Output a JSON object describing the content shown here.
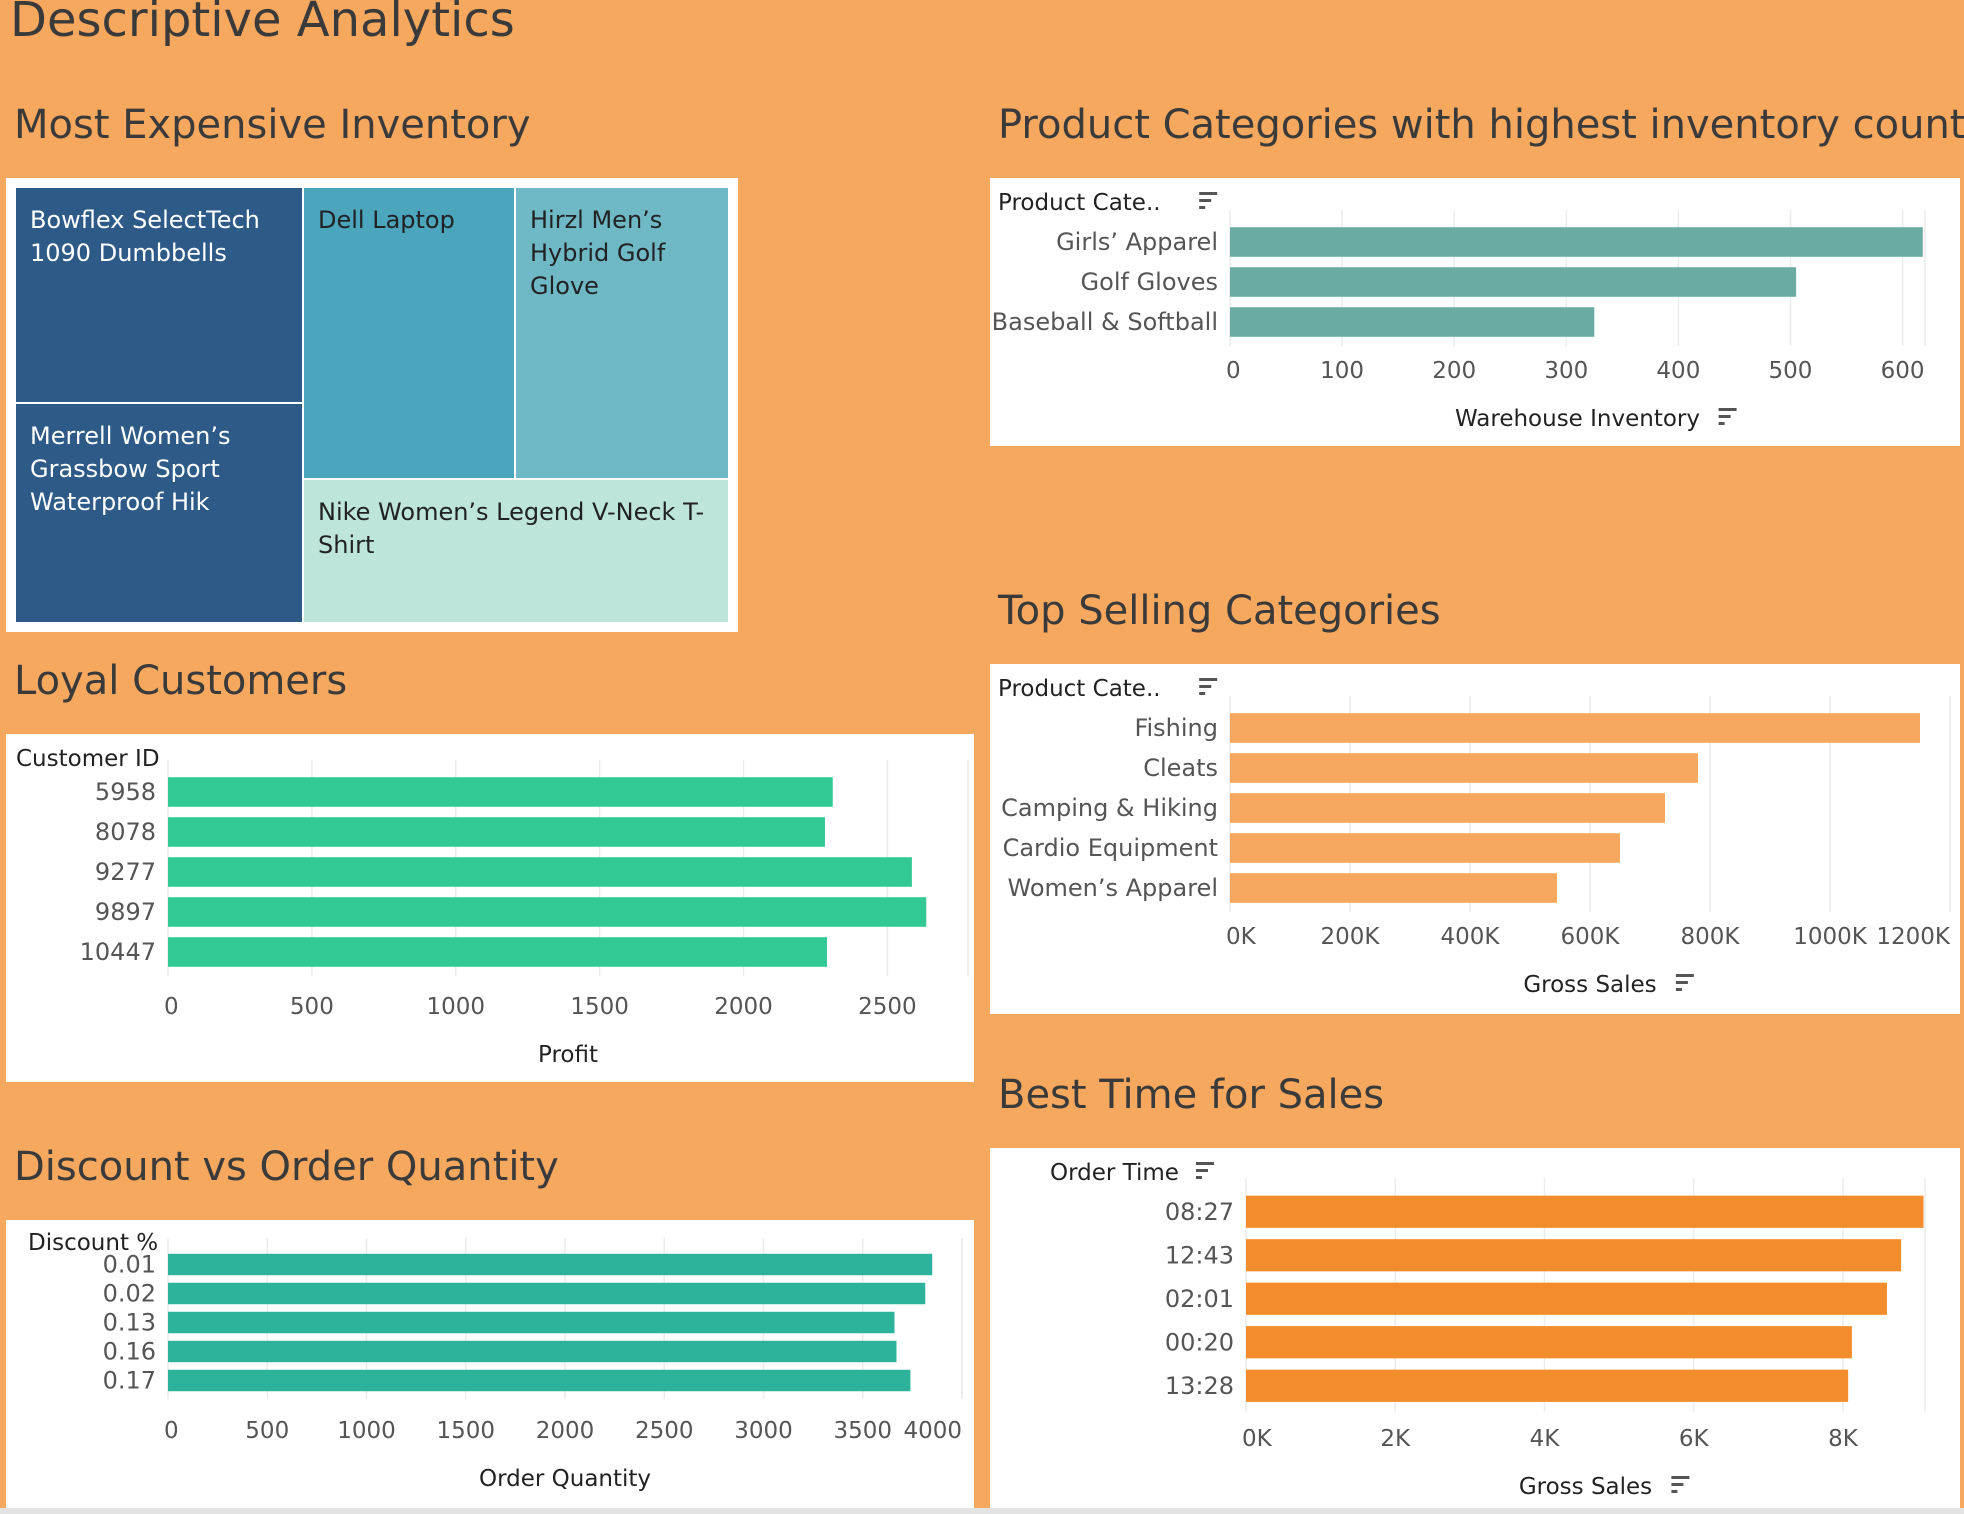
{
  "page": {
    "title": "Descriptive Analytics"
  },
  "sections": {
    "treemap_title": "Most Expensive Inventory",
    "loyal_title": "Loyal Customers",
    "discount_title": "Discount vs Order Quantity",
    "inventory_title": "Product Categories with highest inventory counts",
    "topselling_title": "Top Selling Categories",
    "besttime_title": "Best Time for Sales"
  },
  "colors": {
    "background": "#f6a85f",
    "treemap": [
      "#2d5a87",
      "#4aa5bd",
      "#6fb8c6",
      "#bde5da"
    ],
    "loyal": "#33c994",
    "discount": "#2db39b",
    "inventory": "#6aaca4",
    "topselling": "#f6a85f",
    "besttime": "#f28c2c"
  },
  "chart_data": [
    {
      "id": "treemap",
      "type": "treemap",
      "title": "Most Expensive Inventory",
      "items": [
        {
          "label": "Bowflex SelectTech 1090 Dumbbells",
          "color": "#2d5a87"
        },
        {
          "label": "Merrell Women’s Grassbow Sport Waterproof Hik",
          "color": "#2d5a87"
        },
        {
          "label": "Dell Laptop",
          "color": "#4aa5bd"
        },
        {
          "label": "Hirzl Men’s Hybrid Golf Glove",
          "color": "#6fb8c6"
        },
        {
          "label": "Nike Women’s Legend V-Neck T-Shirt",
          "color": "#bde5da"
        }
      ]
    },
    {
      "id": "inventory",
      "type": "bar",
      "title": "Product Categories with highest inventory counts",
      "orientation": "horizontal",
      "ylabel": "Product Cate..",
      "xlabel": "Warehouse Inventory",
      "categories": [
        "Girls’ Apparel",
        "Golf Gloves",
        "Baseball & Softball"
      ],
      "values": [
        618,
        505,
        325
      ],
      "xlim": [
        0,
        620
      ],
      "ticks": [
        0,
        100,
        200,
        300,
        400,
        500,
        600
      ],
      "tick_labels": [
        "0",
        "100",
        "200",
        "300",
        "400",
        "500",
        "600"
      ],
      "grid": true
    },
    {
      "id": "loyal",
      "type": "bar",
      "title": "Loyal Customers",
      "orientation": "horizontal",
      "ylabel": "Customer ID",
      "xlabel": "Profit",
      "categories": [
        "5958",
        "8078",
        "9277",
        "9897",
        "10447"
      ],
      "values": [
        2310,
        2283,
        2585,
        2635,
        2290
      ],
      "xlim": [
        0,
        2780
      ],
      "ticks": [
        0,
        500,
        1000,
        1500,
        2000,
        2500
      ],
      "tick_labels": [
        "0",
        "500",
        "1000",
        "1500",
        "2000",
        "2500"
      ],
      "grid": true
    },
    {
      "id": "topselling",
      "type": "bar",
      "title": "Top Selling Categories",
      "orientation": "horizontal",
      "ylabel": "Product Cate..",
      "xlabel": "Gross Sales",
      "categories": [
        "Fishing",
        "Cleats",
        "Camping & Hiking",
        "Cardio Equipment",
        "Women’s Apparel"
      ],
      "values": [
        1150000,
        780000,
        725000,
        650000,
        545000
      ],
      "xlim": [
        0,
        1200000
      ],
      "ticks": [
        0,
        200000,
        400000,
        600000,
        800000,
        1000000,
        1200000
      ],
      "tick_labels": [
        "0K",
        "200K",
        "400K",
        "600K",
        "800K",
        "1000K",
        "1200K"
      ],
      "grid": true
    },
    {
      "id": "discount",
      "type": "bar",
      "title": "Discount vs Order Quantity",
      "orientation": "horizontal",
      "ylabel": "Discount %",
      "xlabel": "Order Quantity",
      "categories": [
        "0.01",
        "0.02",
        "0.13",
        "0.16",
        "0.17"
      ],
      "values": [
        3850,
        3815,
        3660,
        3670,
        3740
      ],
      "xlim": [
        0,
        4000
      ],
      "ticks": [
        0,
        500,
        1000,
        1500,
        2000,
        2500,
        3000,
        3500,
        4000
      ],
      "tick_labels": [
        "0",
        "500",
        "1000",
        "1500",
        "2000",
        "2500",
        "3000",
        "3500",
        "4000"
      ],
      "grid": true
    },
    {
      "id": "besttime",
      "type": "bar",
      "title": "Best Time for Sales",
      "orientation": "horizontal",
      "ylabel": "Order Time",
      "xlabel": "Gross Sales",
      "categories": [
        "08:27",
        "12:43",
        "02:01",
        "00:20",
        "13:28"
      ],
      "values": [
        9080,
        8780,
        8590,
        8120,
        8070
      ],
      "xlim": [
        0,
        9100
      ],
      "ticks": [
        0,
        2000,
        4000,
        6000,
        8000
      ],
      "tick_labels": [
        "0K",
        "2K",
        "4K",
        "6K",
        "8K"
      ],
      "grid": true
    }
  ]
}
